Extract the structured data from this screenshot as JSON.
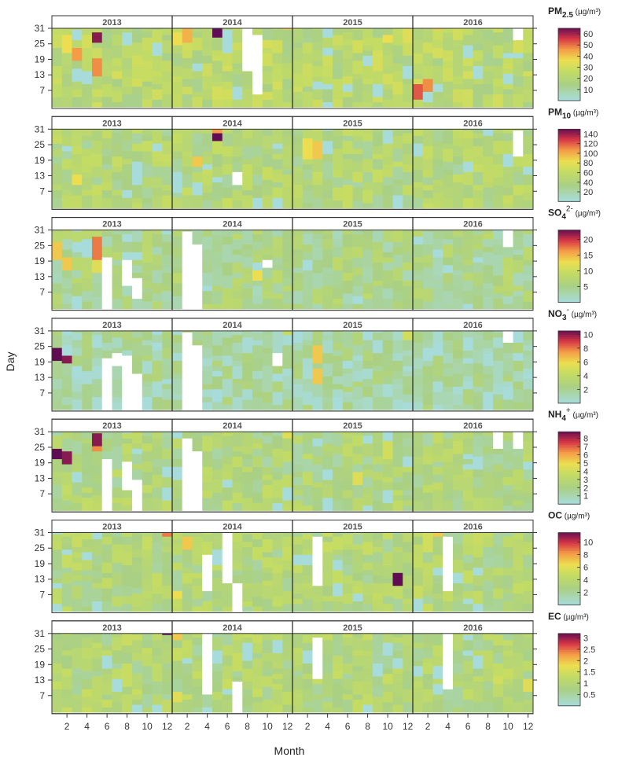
{
  "chart_data": {
    "type": "heatmap",
    "xlabel": "Month",
    "ylabel": "Day",
    "x_ticks": [
      "2",
      "4",
      "6",
      "8",
      "10",
      "12"
    ],
    "y_ticks": [
      "31",
      "25",
      "19",
      "13",
      "7"
    ],
    "years": [
      "2013",
      "2014",
      "2015",
      "2016"
    ],
    "panels": [
      {
        "id": "pm25",
        "species_main": "PM",
        "species_sub": "2.5",
        "species_sup": "",
        "unit": " (µg/m³)",
        "vmax": 65,
        "colorbar_ticks": [
          "60",
          "50",
          "40",
          "30",
          "20",
          "10"
        ],
        "colorbar_values": [
          60,
          50,
          40,
          30,
          20,
          10
        ],
        "mean_level": 0.33,
        "hotspots": [
          [
            2013,
            5,
            27,
            0.95
          ],
          [
            2013,
            3,
            21,
            0.7
          ],
          [
            2013,
            5,
            15,
            0.72
          ],
          [
            2013,
            2,
            23,
            0.55
          ],
          [
            2014,
            5,
            30,
            1.0
          ],
          [
            2014,
            2,
            28,
            0.65
          ],
          [
            2014,
            1,
            26,
            0.55
          ],
          [
            2014,
            12,
            31,
            0.6
          ],
          [
            2015,
            12,
            28,
            0.5
          ],
          [
            2015,
            10,
            25,
            0.55
          ],
          [
            2016,
            3,
            30,
            0.6
          ],
          [
            2016,
            1,
            6,
            0.8
          ],
          [
            2016,
            2,
            6,
            0.72
          ]
        ],
        "gaps": [
          [
            2014,
            8,
            14,
            31
          ],
          [
            2014,
            9,
            6,
            25
          ],
          [
            2016,
            11,
            24,
            30
          ]
        ]
      },
      {
        "id": "pm10",
        "species_main": "PM",
        "species_sub": "10",
        "species_sup": "",
        "unit": " (µg/m³)",
        "vmax": 150,
        "colorbar_ticks": [
          "140",
          "120",
          "100",
          "80",
          "60",
          "40",
          "20"
        ],
        "colorbar_values": [
          140,
          120,
          100,
          80,
          60,
          40,
          20
        ],
        "mean_level": 0.28,
        "hotspots": [
          [
            2014,
            5,
            28,
            1.0
          ],
          [
            2014,
            5,
            30,
            0.7
          ],
          [
            2014,
            3,
            18,
            0.6
          ],
          [
            2015,
            2,
            22,
            0.55
          ],
          [
            2015,
            3,
            20,
            0.6
          ],
          [
            2013,
            3,
            10,
            0.55
          ],
          [
            2013,
            3,
            22,
            0.4
          ]
        ],
        "gaps": [
          [
            2016,
            11,
            20,
            30
          ],
          [
            2014,
            7,
            10,
            11
          ]
        ]
      },
      {
        "id": "so4",
        "species_main": "SO",
        "species_sub": "4",
        "species_sup": "2-",
        "unit": " (µg/m³)",
        "vmax": 23,
        "colorbar_ticks": [
          "20",
          "15",
          "10",
          "5"
        ],
        "colorbar_values": [
          20,
          15,
          10,
          5
        ],
        "mean_level": 0.22,
        "hotspots": [
          [
            2013,
            5,
            25,
            1.0
          ],
          [
            2013,
            5,
            22,
            0.75
          ],
          [
            2013,
            1,
            22,
            0.6
          ],
          [
            2013,
            2,
            18,
            0.6
          ],
          [
            2013,
            5,
            14,
            0.5
          ],
          [
            2014,
            9,
            13,
            0.55
          ]
        ],
        "gaps": [
          [
            2013,
            6,
            1,
            18
          ],
          [
            2013,
            8,
            8,
            18
          ],
          [
            2013,
            9,
            3,
            10
          ],
          [
            2014,
            2,
            1,
            28
          ],
          [
            2014,
            3,
            1,
            23
          ],
          [
            2016,
            10,
            24,
            31
          ],
          [
            2014,
            10,
            16,
            17
          ]
        ]
      },
      {
        "id": "no3",
        "species_main": "NO",
        "species_sub": "3",
        "species_sup": "-",
        "unit": " (µg/m³)",
        "vmax": 10.5,
        "colorbar_ticks": [
          "10",
          "8",
          "6",
          "4",
          "2"
        ],
        "colorbar_values": [
          10,
          8,
          6,
          4,
          2
        ],
        "mean_level": 0.15,
        "hotspots": [
          [
            2013,
            1,
            21,
            1.0
          ],
          [
            2013,
            2,
            19,
            0.95
          ],
          [
            2015,
            3,
            21,
            0.6
          ],
          [
            2015,
            3,
            13,
            0.6
          ],
          [
            2015,
            12,
            27,
            0.45
          ],
          [
            2014,
            12,
            29,
            0.4
          ]
        ],
        "gaps": [
          [
            2013,
            6,
            1,
            20
          ],
          [
            2013,
            7,
            18,
            22
          ],
          [
            2013,
            8,
            1,
            20
          ],
          [
            2013,
            9,
            1,
            14
          ],
          [
            2014,
            2,
            1,
            30
          ],
          [
            2014,
            3,
            1,
            22
          ],
          [
            2016,
            10,
            25,
            31
          ],
          [
            2014,
            11,
            17,
            18
          ]
        ]
      },
      {
        "id": "nh4",
        "species_main": "NH",
        "species_sub": "4",
        "species_sup": "+",
        "unit": " (µg/m³)",
        "vmax": 8.8,
        "colorbar_ticks": [
          "8",
          "7",
          "6",
          "5",
          "4",
          "3",
          "2",
          "1"
        ],
        "colorbar_values": [
          8,
          7,
          6,
          5,
          4,
          3,
          2,
          1
        ],
        "mean_level": 0.26,
        "hotspots": [
          [
            2013,
            1,
            22,
            1.0
          ],
          [
            2013,
            2,
            19,
            0.95
          ],
          [
            2013,
            5,
            24,
            0.95
          ],
          [
            2013,
            5,
            22,
            0.72
          ],
          [
            2014,
            12,
            29,
            0.5
          ],
          [
            2015,
            7,
            13,
            0.5
          ],
          [
            2015,
            10,
            23,
            0.45
          ]
        ],
        "gaps": [
          [
            2013,
            6,
            1,
            18
          ],
          [
            2013,
            8,
            8,
            18
          ],
          [
            2013,
            9,
            1,
            10
          ],
          [
            2014,
            2,
            1,
            28
          ],
          [
            2014,
            3,
            1,
            23
          ],
          [
            2016,
            9,
            24,
            30
          ],
          [
            2016,
            11,
            23,
            31
          ]
        ]
      },
      {
        "id": "oc",
        "species_main": "OC",
        "species_sub": "",
        "species_sup": "",
        "unit": " (µg/m³)",
        "vmax": 11.5,
        "colorbar_ticks": [
          "10",
          "8",
          "6",
          "4",
          "2"
        ],
        "colorbar_values": [
          10,
          8,
          6,
          4,
          2
        ],
        "mean_level": 0.28,
        "hotspots": [
          [
            2013,
            12,
            31,
            0.75
          ],
          [
            2014,
            2,
            27,
            0.6
          ],
          [
            2014,
            1,
            6,
            0.55
          ],
          [
            2015,
            11,
            10,
            1.0
          ],
          [
            2016,
            3,
            29,
            0.6
          ],
          [
            2016,
            2,
            26,
            0.45
          ]
        ],
        "gaps": [
          [
            2014,
            4,
            6,
            22
          ],
          [
            2014,
            6,
            10,
            31
          ],
          [
            2014,
            7,
            1,
            10
          ],
          [
            2015,
            3,
            9,
            29
          ],
          [
            2016,
            4,
            6,
            28
          ]
        ]
      },
      {
        "id": "ec",
        "species_main": "EC",
        "species_sub": "",
        "species_sup": "",
        "unit": " (µg/m³)",
        "vmax": 3.2,
        "colorbar_ticks": [
          "3",
          "2.5",
          "2",
          "1.5",
          "1",
          "0.5"
        ],
        "colorbar_values": [
          3,
          2.5,
          2,
          1.5,
          1,
          0.5
        ],
        "mean_level": 0.28,
        "hotspots": [
          [
            2013,
            12,
            31,
            1.0
          ],
          [
            2014,
            1,
            30,
            0.6
          ],
          [
            2014,
            1,
            5,
            0.5
          ],
          [
            2016,
            12,
            11,
            0.5
          ],
          [
            2016,
            9,
            10,
            0.45
          ]
        ],
        "gaps": [
          [
            2014,
            4,
            6,
            29
          ],
          [
            2014,
            7,
            1,
            10
          ],
          [
            2015,
            3,
            14,
            28
          ],
          [
            2016,
            4,
            10,
            30
          ]
        ]
      }
    ]
  }
}
